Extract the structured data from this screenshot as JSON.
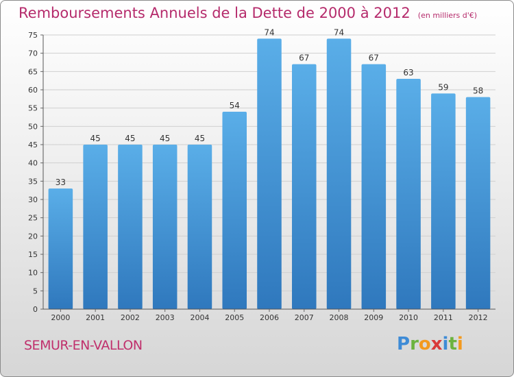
{
  "title": "Remboursements Annuels de la Dette de 2000 à 2012",
  "unit": "(en milliers d'€)",
  "commune": "SEMUR-EN-VALLON",
  "brand": "Proxiti",
  "colors": {
    "bar": "#3f8fd2",
    "bar_light": "#5aaee8",
    "title": "#b52a6b"
  },
  "chart_data": {
    "type": "bar",
    "categories": [
      "2000",
      "2001",
      "2002",
      "2003",
      "2004",
      "2005",
      "2006",
      "2007",
      "2008",
      "2009",
      "2010",
      "2011",
      "2012"
    ],
    "values": [
      33,
      45,
      45,
      45,
      45,
      54,
      74,
      67,
      74,
      67,
      63,
      59,
      58
    ],
    "title": "Remboursements Annuels de la Dette de 2000 à 2012",
    "subtitle": "(en milliers d'€)",
    "xlabel": "",
    "ylabel": "",
    "ylim": [
      0,
      75
    ],
    "yticks": [
      0,
      5,
      10,
      15,
      20,
      25,
      30,
      35,
      40,
      45,
      50,
      55,
      60,
      65,
      70,
      75
    ],
    "grid": true,
    "legend": "none"
  }
}
